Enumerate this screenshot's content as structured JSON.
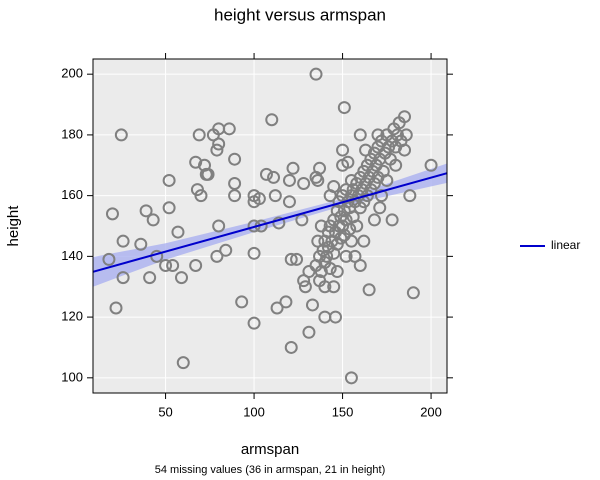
{
  "chart_data": {
    "type": "scatter",
    "title": "height versus armspan",
    "x_label": "armspan",
    "y_label": "height",
    "footnote": "54 missing values (36 in armspan, 21 in height)",
    "xlim": [
      9,
      209
    ],
    "ylim": [
      95,
      205
    ],
    "xticks": [
      50,
      100,
      150,
      200
    ],
    "yticks": [
      100,
      120,
      140,
      160,
      180,
      200
    ],
    "grid": true,
    "legend_position": "right",
    "series": [
      {
        "type": "scatter",
        "color": "#808080",
        "x": [
          135,
          151,
          110,
          25,
          69,
          77,
          80,
          86,
          80,
          79,
          67,
          72,
          73,
          74,
          89,
          111,
          107,
          122,
          120,
          128,
          135,
          137,
          136,
          52,
          68,
          70,
          89,
          89,
          100,
          100,
          103,
          112,
          114,
          120,
          20,
          39,
          43,
          52,
          57,
          80,
          100,
          104,
          127,
          18,
          26,
          36,
          45,
          50,
          54,
          22,
          26,
          41,
          59,
          67,
          79,
          84,
          100,
          93,
          100,
          60,
          113,
          118,
          121,
          124,
          121,
          131,
          128,
          129,
          133,
          131,
          140,
          146,
          145,
          165,
          160,
          155,
          190,
          188,
          200,
          152,
          155,
          162,
          168,
          171,
          178,
          172,
          135,
          137,
          138,
          139,
          140,
          140,
          141,
          142,
          142,
          143,
          143,
          144,
          145,
          145,
          146,
          147,
          147,
          148,
          148,
          149,
          149,
          150,
          150,
          151,
          151,
          152,
          152,
          153,
          154,
          154,
          155,
          155,
          156,
          156,
          157,
          158,
          158,
          159,
          160,
          160,
          161,
          162,
          162,
          163,
          164,
          164,
          165,
          166,
          166,
          167,
          168,
          168,
          169,
          170,
          170,
          171,
          172,
          173,
          174,
          175,
          176,
          177,
          178,
          179,
          180,
          181,
          182,
          183,
          185,
          186,
          170,
          160,
          163,
          175,
          180,
          185,
          143,
          145,
          150,
          150,
          153,
          138,
          136,
          140,
          137,
          157,
          147
        ],
        "values": [
          200,
          189,
          185,
          180,
          180,
          180,
          182,
          182,
          177,
          175,
          171,
          170,
          167,
          167,
          172,
          166,
          167,
          169,
          165,
          164,
          166,
          169,
          165,
          165,
          162,
          160,
          164,
          160,
          160,
          158,
          159,
          160,
          151,
          158,
          154,
          155,
          152,
          156,
          148,
          150,
          150,
          150,
          152,
          139,
          145,
          144,
          140,
          137,
          137,
          123,
          133,
          133,
          133,
          137,
          140,
          142,
          141,
          125,
          118,
          105,
          123,
          125,
          110,
          139,
          139,
          135,
          132,
          130,
          124,
          115,
          120,
          120,
          130,
          129,
          137,
          100,
          128,
          160,
          170,
          140,
          145,
          145,
          152,
          156,
          152,
          160,
          137,
          140,
          135,
          142,
          138,
          145,
          140,
          143,
          148,
          136,
          150,
          145,
          141,
          152,
          148,
          144,
          155,
          150,
          158,
          146,
          153,
          150,
          160,
          155,
          147,
          152,
          162,
          158,
          149,
          156,
          160,
          165,
          153,
          162,
          158,
          164,
          150,
          160,
          166,
          156,
          162,
          168,
          158,
          164,
          170,
          160,
          166,
          172,
          162,
          168,
          174,
          164,
          170,
          176,
          166,
          172,
          178,
          168,
          174,
          180,
          176,
          172,
          178,
          182,
          176,
          180,
          184,
          178,
          186,
          180,
          180,
          180,
          175,
          165,
          170,
          175,
          160,
          163,
          170,
          175,
          171,
          150,
          145,
          130,
          132,
          140,
          135
        ]
      },
      {
        "name": "linear",
        "type": "line",
        "color": "#0000cc",
        "x": [
          9,
          209
        ],
        "values": [
          134.9,
          167.4
        ]
      }
    ],
    "band": {
      "color": "#aab0f0",
      "x": [
        9,
        50,
        100,
        150,
        209
      ],
      "lower": [
        130.0,
        138.9,
        148.0,
        156.6,
        164.2
      ],
      "upper": [
        139.8,
        144.3,
        151.4,
        159.0,
        170.6
      ]
    }
  }
}
